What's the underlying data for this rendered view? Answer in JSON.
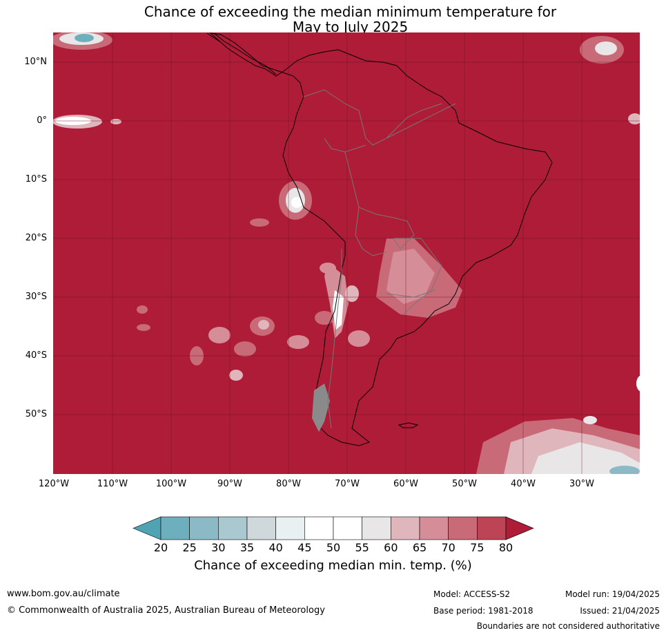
{
  "title": {
    "line1": "Chance of exceeding the median minimum temperature for",
    "line2": "May to July 2025"
  },
  "map": {
    "lat_labels": [
      "10°N",
      "0°",
      "10°S",
      "20°S",
      "30°S",
      "40°S",
      "50°S"
    ],
    "lon_labels": [
      "120°W",
      "110°W",
      "100°W",
      "90°W",
      "80°W",
      "70°W",
      "60°W",
      "50°W",
      "40°W",
      "30°W"
    ],
    "background_color": "#ae1c37"
  },
  "colorbar": {
    "ticks": [
      "20",
      "25",
      "30",
      "35",
      "40",
      "45",
      "50",
      "55",
      "60",
      "65",
      "70",
      "75",
      "80"
    ],
    "colors": [
      "#4fa3b3",
      "#6eafbd",
      "#8cb9c6",
      "#aac8cf",
      "#cfd9dc",
      "#e8f0f2",
      "#ffffff",
      "#ffffff",
      "#e9e6e7",
      "#e0b6bd",
      "#d58d97",
      "#c86a77",
      "#bd4454",
      "#ae1c37"
    ],
    "label": "Chance of exceeding median min. temp. (%)"
  },
  "footer": {
    "website": "www.bom.gov.au/climate",
    "copyright": "© Commonwealth of Australia 2025, Australian Bureau of Meteorology",
    "model": "Model: ACCESS-S2",
    "base_period": "Base period: 1981-2018",
    "model_run": "Model run: 19/04/2025",
    "issued": "Issued: 21/04/2025",
    "disclaimer": "Boundaries are not considered authoritative"
  }
}
